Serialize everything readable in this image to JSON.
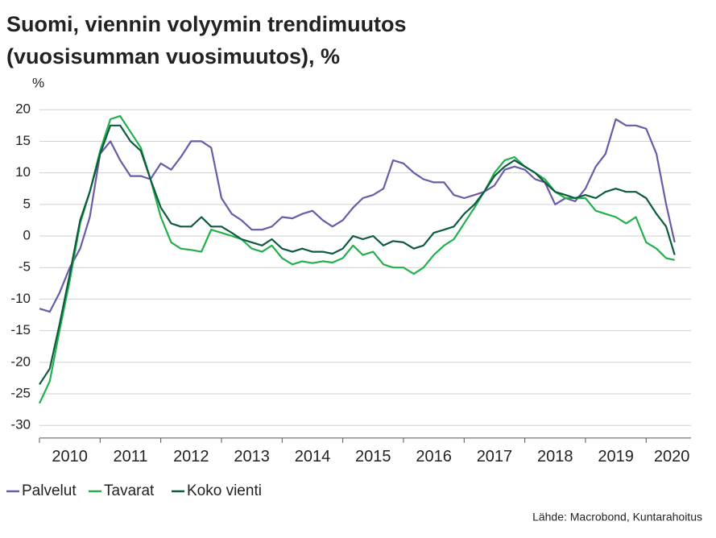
{
  "chart_data": {
    "type": "line",
    "title": [
      "Suomi, viennin volyymin trendimuutos",
      "(vuosisumman vuosimuutos), %"
    ],
    "y_label": "%",
    "source": "Lähde: Macrobond, Kuntarahoitus",
    "x": [
      2010,
      2010.17,
      2010.33,
      2010.5,
      2010.67,
      2010.83,
      2011,
      2011.17,
      2011.33,
      2011.5,
      2011.67,
      2011.83,
      2012,
      2012.17,
      2012.33,
      2012.5,
      2012.67,
      2012.83,
      2013,
      2013.17,
      2013.33,
      2013.5,
      2013.67,
      2013.83,
      2014,
      2014.17,
      2014.33,
      2014.5,
      2014.67,
      2014.83,
      2015,
      2015.17,
      2015.33,
      2015.5,
      2015.67,
      2015.83,
      2016,
      2016.17,
      2016.33,
      2016.5,
      2016.67,
      2016.83,
      2017,
      2017.17,
      2017.33,
      2017.5,
      2017.67,
      2017.83,
      2018,
      2018.17,
      2018.33,
      2018.5,
      2018.67,
      2018.83,
      2019,
      2019.17,
      2019.33,
      2019.5,
      2019.67,
      2019.83,
      2020,
      2020.17,
      2020.33,
      2020.47
    ],
    "series": [
      {
        "name": "Palvelut",
        "color": "#6a5aa8",
        "values": [
          -11.5,
          -12,
          -9,
          -5,
          -2,
          3,
          13,
          15,
          12,
          9.5,
          9.5,
          9,
          11.5,
          10.5,
          12.5,
          15,
          15,
          14,
          6,
          3.5,
          2.5,
          1,
          1,
          1.5,
          3,
          2.8,
          3.5,
          4,
          2.5,
          1.5,
          2.5,
          4.5,
          6,
          6.5,
          7.5,
          12,
          11.5,
          10,
          9,
          8.5,
          8.5,
          6.5,
          6,
          6.5,
          7,
          8,
          10.5,
          11,
          10.5,
          9,
          8.5,
          5,
          6,
          5.5,
          7.5,
          11,
          13,
          18.5,
          17.5,
          17.5,
          17,
          13,
          5,
          -1
        ]
      },
      {
        "name": "Tavarat",
        "color": "#22b04b",
        "values": [
          -26.5,
          -23,
          -15,
          -7,
          2,
          7,
          13.5,
          18.5,
          19,
          16.5,
          14,
          9,
          3,
          -1,
          -2,
          -2.2,
          -2.5,
          1,
          0.5,
          0,
          -0.5,
          -2,
          -2.5,
          -1.5,
          -3.5,
          -4.5,
          -4,
          -4.3,
          -4,
          -4.2,
          -3.5,
          -1.5,
          -3,
          -2.5,
          -4.5,
          -5,
          -5,
          -6,
          -5,
          -3,
          -1.5,
          -0.5,
          2,
          4.5,
          7,
          10,
          12,
          12.5,
          11,
          10,
          9,
          7,
          6,
          6,
          6,
          4,
          3.5,
          3,
          2,
          3,
          -1,
          -2,
          -3.5,
          -3.8
        ]
      },
      {
        "name": "Koko vienti",
        "color": "#0d5a3f",
        "values": [
          -23.5,
          -21,
          -14,
          -6,
          2.5,
          7,
          13,
          17.5,
          17.5,
          15,
          13.5,
          9,
          4.5,
          2,
          1.5,
          1.5,
          3,
          1.5,
          1.5,
          0.5,
          -0.5,
          -1,
          -1.5,
          -0.5,
          -2,
          -2.5,
          -2,
          -2.5,
          -2.5,
          -2.8,
          -2,
          0,
          -0.5,
          0,
          -1.5,
          -0.8,
          -1,
          -2,
          -1.5,
          0.5,
          1,
          1.5,
          3.5,
          5,
          7,
          9.5,
          11,
          12,
          11,
          10,
          8.5,
          7,
          6.5,
          6,
          6.5,
          6,
          7,
          7.5,
          7,
          7,
          6,
          3.5,
          1.5,
          -3
        ]
      }
    ],
    "xlim": [
      2010,
      2020.74
    ],
    "xticks": [
      2010,
      2011,
      2012,
      2013,
      2014,
      2015,
      2016,
      2017,
      2018,
      2019,
      2020
    ],
    "ylim": [
      -32,
      21
    ],
    "yticks": [
      -30,
      -25,
      -20,
      -15,
      -10,
      -5,
      0,
      5,
      10,
      15,
      20
    ],
    "grid": true
  }
}
